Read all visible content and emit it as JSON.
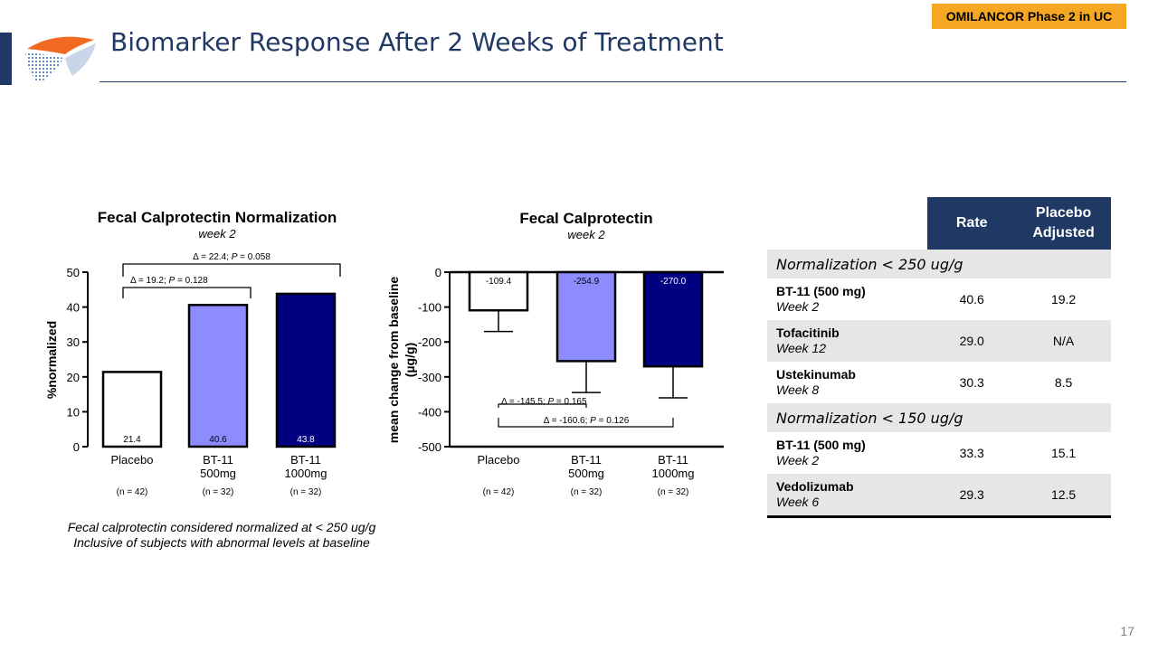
{
  "header": {
    "badge": "OMILANCOR Phase 2 in UC",
    "title": "Biomarker Response After 2 Weeks of Treatment"
  },
  "colors": {
    "navy": "#1f3864",
    "accent": "#f5a623",
    "placebo_bar": "#ffffff",
    "bt11_500_bar": "#8c8cff",
    "bt11_1000_bar": "#000080"
  },
  "chart_data": [
    {
      "type": "bar",
      "title": "Fecal Calprotectin Normalization",
      "subtitle": "week 2",
      "ylabel": "%normalized",
      "ylim": [
        0,
        50
      ],
      "yticks": [
        "0",
        "10",
        "20",
        "30",
        "40",
        "50"
      ],
      "categories": [
        "Placebo",
        "BT-11 500mg",
        "BT-11 1000mg"
      ],
      "category_lines": [
        [
          "Placebo"
        ],
        [
          "BT-11",
          "500mg"
        ],
        [
          "BT-11",
          "1000mg"
        ]
      ],
      "n_labels": [
        "(n = 42)",
        "(n = 32)",
        "(n = 32)"
      ],
      "values": [
        21.4,
        40.6,
        43.8
      ],
      "value_labels": [
        "21.4",
        "40.6",
        "43.8"
      ],
      "annotations": [
        {
          "label": "Δ = 22.4; P = 0.058",
          "delta": "Δ = 22.4; ",
          "p": "P",
          "pval": " = 0.058",
          "from": 0,
          "to": 2
        },
        {
          "label": "Δ = 19.2; P = 0.128",
          "delta": "Δ = 19.2; ",
          "p": "P",
          "pval": " = 0.128",
          "from": 0,
          "to": 1
        }
      ]
    },
    {
      "type": "bar",
      "title": "Fecal Calprotectin",
      "subtitle": "week 2",
      "ylabel_lines": [
        "mean change from baseline",
        "(µg/g)"
      ],
      "ylim": [
        -500,
        0
      ],
      "yticks": [
        "0",
        "-100",
        "-200",
        "-300",
        "-400",
        "-500"
      ],
      "categories": [
        "Placebo",
        "BT-11 500mg",
        "BT-11 1000mg"
      ],
      "category_lines": [
        [
          "Placebo"
        ],
        [
          "BT-11",
          "500mg"
        ],
        [
          "BT-11",
          "1000mg"
        ]
      ],
      "n_labels": [
        "(n = 42)",
        "(n = 32)",
        "(n = 32)"
      ],
      "values": [
        -109.4,
        -254.9,
        -270.0
      ],
      "value_labels": [
        "-109.4",
        "-254.9",
        "-270.0"
      ],
      "error_bottoms": [
        -170,
        -345,
        -360
      ],
      "annotations": [
        {
          "label": "Δ = -145.5; P = 0.165",
          "delta": "Δ = -145.5; ",
          "p": "P",
          "pval": " = 0.165",
          "from": 0,
          "to": 1
        },
        {
          "label": "Δ = -160.6; P = 0.126",
          "delta": "Δ = -160.6; ",
          "p": "P",
          "pval": " = 0.126",
          "from": 0,
          "to": 2
        }
      ]
    }
  ],
  "notes": [
    "Fecal calprotectin considered normalized at < 250 ug/g",
    "Inclusive of subjects with abnormal levels at baseline"
  ],
  "table": {
    "col_rate": "Rate",
    "col_adj_line1": "Placebo",
    "col_adj_line2": "Adjusted",
    "sections": [
      {
        "title": "Normalization < 250 ug/g",
        "rows": [
          {
            "drug": "BT-11 (500 mg)",
            "week": "Week 2",
            "rate": "40.6",
            "adjusted": "19.2"
          },
          {
            "drug": "Tofacitinib",
            "week": "Week 12",
            "rate": "29.0",
            "adjusted": "N/A"
          },
          {
            "drug": "Ustekinumab",
            "week": "Week 8",
            "rate": "30.3",
            "adjusted": "8.5"
          }
        ]
      },
      {
        "title": "Normalization < 150 ug/g",
        "rows": [
          {
            "drug": "BT-11 (500 mg)",
            "week": "Week 2",
            "rate": "33.3",
            "adjusted": "15.1"
          },
          {
            "drug": "Vedolizumab",
            "week": "Week 6",
            "rate": "29.3",
            "adjusted": "12.5"
          }
        ]
      }
    ]
  },
  "page_number": "17"
}
